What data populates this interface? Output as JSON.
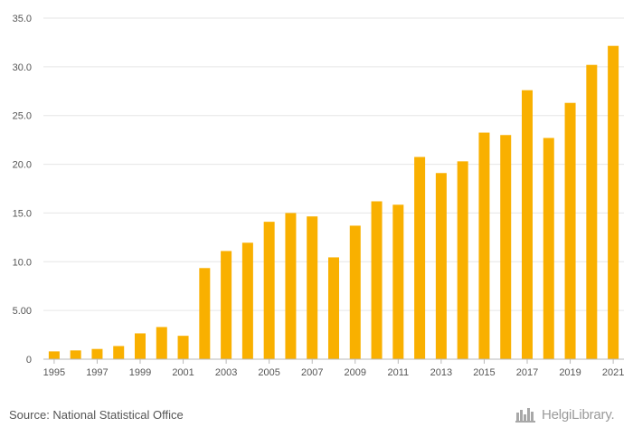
{
  "chart_data": {
    "type": "bar",
    "title": "",
    "xlabel": "",
    "ylabel": "",
    "ylim": [
      0,
      35
    ],
    "yticks": [
      "0",
      "5.00",
      "10.0",
      "15.0",
      "20.0",
      "25.0",
      "30.0",
      "35.0"
    ],
    "bar_color": "#f9b000",
    "categories": [
      "1995",
      "1996",
      "1997",
      "1998",
      "1999",
      "2000",
      "2001",
      "2002",
      "2003",
      "2004",
      "2005",
      "2006",
      "2007",
      "2008",
      "2009",
      "2010",
      "2011",
      "2012",
      "2013",
      "2014",
      "2015",
      "2016",
      "2017",
      "2018",
      "2019",
      "2020",
      "2021"
    ],
    "xtick_labels": [
      "1995",
      "1997",
      "1999",
      "2001",
      "2003",
      "2005",
      "2007",
      "2009",
      "2011",
      "2013",
      "2015",
      "2017",
      "2019",
      "2021"
    ],
    "values": [
      0.8,
      0.9,
      1.05,
      1.35,
      2.65,
      3.3,
      2.4,
      9.35,
      11.1,
      11.95,
      14.1,
      15.0,
      14.65,
      10.45,
      13.7,
      16.2,
      15.85,
      20.75,
      19.1,
      20.3,
      23.25,
      23.0,
      27.6,
      22.7,
      26.3,
      30.2,
      32.15
    ]
  },
  "footer": {
    "source": "Source: National Statistical Office",
    "logo_text": "HelgiLibrary."
  }
}
